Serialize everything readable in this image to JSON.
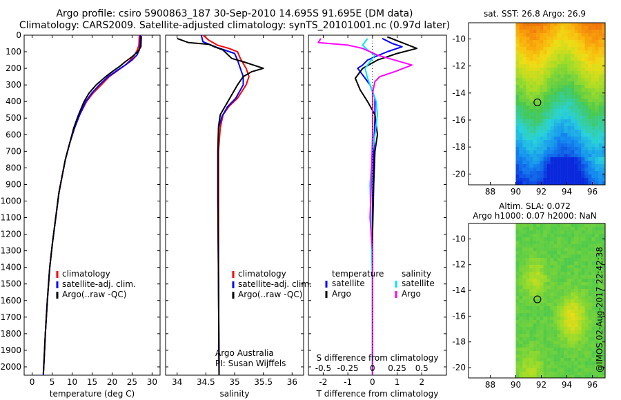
{
  "header": {
    "title_line1": "Argo profile: csiro 5900863_187 30-Sep-2010 14.695S 91.695E (DM data)",
    "title_line2": "Climatology: CARS2009. Satellite-adjusted climatology: synTS_20101001.nc (0.97d later)"
  },
  "colors": {
    "climatology": "#ff0000",
    "satellite": "#0000ff",
    "argo": "#000000",
    "sal_satellite": "#00e5ff",
    "sal_argo": "#ff00ff"
  },
  "depth_axis": {
    "range": [
      0,
      2050
    ],
    "ticks": [
      0,
      100,
      200,
      300,
      400,
      500,
      600,
      700,
      800,
      900,
      1000,
      1100,
      1200,
      1300,
      1400,
      1500,
      1600,
      1700,
      1800,
      1900,
      2000
    ]
  },
  "chart_data": [
    {
      "type": "line",
      "id": "temperature",
      "xlabel": "temperature (deg C)",
      "xlim": [
        -2,
        32
      ],
      "xticks": [
        0,
        5,
        10,
        15,
        20,
        25,
        30
      ],
      "legend": [
        "climatology",
        "satellite-adj. clim.",
        "Argo(..raw -QC)"
      ],
      "series": [
        {
          "name": "climatology",
          "color": "#ff0000",
          "points": [
            [
              26.8,
              0
            ],
            [
              26.7,
              60
            ],
            [
              26.3,
              90
            ],
            [
              25.6,
              120
            ],
            [
              24.6,
              150
            ],
            [
              23.3,
              180
            ],
            [
              21.6,
              210
            ],
            [
              19.3,
              250
            ],
            [
              17.3,
              300
            ],
            [
              15.2,
              350
            ],
            [
              13.6,
              400
            ],
            [
              11.9,
              480
            ],
            [
              10.6,
              560
            ],
            [
              9.4,
              650
            ],
            [
              8.3,
              750
            ],
            [
              7.5,
              850
            ],
            [
              6.7,
              950
            ],
            [
              5.9,
              1100
            ],
            [
              5.1,
              1250
            ],
            [
              4.4,
              1400
            ],
            [
              3.8,
              1600
            ],
            [
              3.3,
              1800
            ],
            [
              3.0,
              1950
            ],
            [
              2.8,
              2050
            ]
          ]
        },
        {
          "name": "satellite-adj. clim.",
          "color": "#0000ff",
          "points": [
            [
              27.1,
              0
            ],
            [
              27.0,
              60
            ],
            [
              26.8,
              90
            ],
            [
              26.2,
              120
            ],
            [
              25.0,
              150
            ],
            [
              23.3,
              180
            ],
            [
              21.4,
              210
            ],
            [
              19.0,
              250
            ],
            [
              16.8,
              300
            ],
            [
              14.9,
              350
            ],
            [
              13.4,
              400
            ],
            [
              11.9,
              480
            ],
            [
              10.6,
              560
            ],
            [
              9.4,
              650
            ],
            [
              8.3,
              750
            ],
            [
              7.5,
              850
            ],
            [
              6.7,
              950
            ],
            [
              5.9,
              1100
            ],
            [
              5.1,
              1250
            ],
            [
              4.4,
              1400
            ],
            [
              3.8,
              1600
            ],
            [
              3.3,
              1800
            ],
            [
              3.0,
              1950
            ],
            [
              2.8,
              2050
            ]
          ]
        },
        {
          "name": "Argo(..raw -QC)",
          "color": "#000000",
          "points": [
            [
              27.3,
              5
            ],
            [
              27.2,
              70
            ],
            [
              26.4,
              100
            ],
            [
              25.0,
              130
            ],
            [
              23.3,
              160
            ],
            [
              21.8,
              190
            ],
            [
              20.3,
              215
            ],
            [
              18.4,
              250
            ],
            [
              16.0,
              300
            ],
            [
              14.2,
              350
            ],
            [
              13.0,
              400
            ],
            [
              11.6,
              480
            ],
            [
              10.4,
              560
            ],
            [
              9.4,
              650
            ],
            [
              8.3,
              750
            ],
            [
              7.5,
              850
            ],
            [
              6.7,
              950
            ],
            [
              5.9,
              1100
            ],
            [
              5.1,
              1250
            ],
            [
              4.4,
              1400
            ],
            [
              3.8,
              1600
            ],
            [
              3.3,
              1800
            ],
            [
              3.0,
              1950
            ],
            [
              2.8,
              2040
            ]
          ]
        }
      ]
    },
    {
      "type": "line",
      "id": "salinity",
      "xlabel": "salinity",
      "xlim": [
        33.8,
        36.2
      ],
      "xticks": [
        34,
        34.5,
        35,
        35.5,
        36
      ],
      "legend": [
        "climatology",
        "satellite-adj. clim.",
        "Argo(..raw -QC)"
      ],
      "annotation": [
        "Argo Australia",
        "PI: Susan Wijffels"
      ],
      "series": [
        {
          "name": "climatology",
          "color": "#ff0000",
          "points": [
            [
              34.45,
              0
            ],
            [
              34.55,
              30
            ],
            [
              34.7,
              60
            ],
            [
              34.9,
              80
            ],
            [
              35.05,
              100
            ],
            [
              35.1,
              140
            ],
            [
              35.2,
              200
            ],
            [
              35.25,
              250
            ],
            [
              35.2,
              300
            ],
            [
              35.05,
              380
            ],
            [
              34.9,
              430
            ],
            [
              34.8,
              480
            ],
            [
              34.75,
              560
            ],
            [
              34.72,
              700
            ],
            [
              34.72,
              1000
            ],
            [
              34.72,
              1500
            ],
            [
              34.73,
              2050
            ]
          ]
        },
        {
          "name": "satellite-adj. clim.",
          "color": "#0000ff",
          "points": [
            [
              34.42,
              0
            ],
            [
              34.45,
              40
            ],
            [
              34.7,
              75
            ],
            [
              35.0,
              110
            ],
            [
              35.05,
              150
            ],
            [
              35.1,
              200
            ],
            [
              35.15,
              250
            ],
            [
              35.15,
              300
            ],
            [
              35.02,
              380
            ],
            [
              34.88,
              430
            ],
            [
              34.78,
              490
            ],
            [
              34.72,
              560
            ],
            [
              34.71,
              700
            ],
            [
              34.71,
              1000
            ],
            [
              34.72,
              1500
            ],
            [
              34.73,
              2050
            ]
          ]
        },
        {
          "name": "Argo(..raw -QC)",
          "color": "#000000",
          "points": [
            [
              34.0,
              20
            ],
            [
              34.2,
              45
            ],
            [
              34.55,
              55
            ],
            [
              34.65,
              70
            ],
            [
              34.8,
              90
            ],
            [
              34.95,
              140
            ],
            [
              35.15,
              160
            ],
            [
              35.5,
              200
            ],
            [
              35.3,
              220
            ],
            [
              35.15,
              250
            ],
            [
              35.05,
              300
            ],
            [
              34.95,
              360
            ],
            [
              34.85,
              420
            ],
            [
              34.75,
              480
            ],
            [
              34.72,
              550
            ],
            [
              34.71,
              700
            ],
            [
              34.71,
              1000
            ],
            [
              34.72,
              1500
            ],
            [
              34.73,
              2050
            ]
          ]
        }
      ]
    },
    {
      "type": "line",
      "id": "differences",
      "xlabel": "T difference from climatology",
      "xlabel_top": "S difference from climatology",
      "xlim": [
        -2.6,
        3.0
      ],
      "xticks": [
        -2,
        -1,
        0,
        1,
        2
      ],
      "top_ticks": [
        {
          "label": "-0.5",
          "t": -2
        },
        {
          "label": "-0.25",
          "t": -1
        },
        {
          "label": "0",
          "t": 0
        },
        {
          "label": "0.25",
          "t": 1
        },
        {
          "label": "0.5",
          "t": 2
        }
      ],
      "legend_left_title": "temperature",
      "legend_right_title": "salinity",
      "legend_left": [
        "satellite",
        "Argo"
      ],
      "legend_right": [
        "satellite",
        "Argo"
      ],
      "series": [
        {
          "name": "T satellite",
          "color": "#0000ff",
          "points": [
            [
              0.4,
              20
            ],
            [
              0.8,
              50
            ],
            [
              1.2,
              70
            ],
            [
              0.6,
              100
            ],
            [
              0.1,
              130
            ],
            [
              -0.2,
              150
            ],
            [
              -0.4,
              180
            ],
            [
              -0.6,
              200
            ],
            [
              -0.4,
              240
            ],
            [
              -0.1,
              300
            ],
            [
              0.1,
              380
            ],
            [
              0.1,
              500
            ],
            [
              0.05,
              700
            ],
            [
              0,
              1000
            ],
            [
              0,
              1500
            ],
            [
              0,
              2050
            ]
          ]
        },
        {
          "name": "T Argo",
          "color": "#000000",
          "points": [
            [
              0.6,
              10
            ],
            [
              1.8,
              80
            ],
            [
              1.0,
              110
            ],
            [
              0.2,
              150
            ],
            [
              -0.4,
              200
            ],
            [
              -0.7,
              260
            ],
            [
              -0.5,
              330
            ],
            [
              -0.2,
              400
            ],
            [
              0.1,
              480
            ],
            [
              0.2,
              600
            ],
            [
              0.1,
              700
            ],
            [
              0.05,
              900
            ],
            [
              0,
              1200
            ],
            [
              0,
              1600
            ],
            [
              0,
              2050
            ]
          ]
        },
        {
          "name": "S satellite",
          "color": "#00e5ff",
          "points": [
            [
              -0.2,
              20
            ],
            [
              -0.4,
              60
            ],
            [
              -0.2,
              90
            ],
            [
              0.1,
              120
            ],
            [
              -0.1,
              160
            ],
            [
              -0.3,
              200
            ],
            [
              -0.2,
              260
            ],
            [
              0,
              340
            ],
            [
              0.15,
              400
            ],
            [
              0.2,
              480
            ],
            [
              0.1,
              600
            ],
            [
              0,
              700
            ],
            [
              -0.1,
              900
            ],
            [
              -0.05,
              1200
            ],
            [
              0,
              1500
            ],
            [
              0,
              2050
            ]
          ]
        },
        {
          "name": "S Argo",
          "color": "#ff00ff",
          "points": [
            [
              -2.1,
              20
            ],
            [
              -2.2,
              45
            ],
            [
              -1.0,
              60
            ],
            [
              -0.4,
              80
            ],
            [
              0.2,
              120
            ],
            [
              1.6,
              180
            ],
            [
              0.9,
              220
            ],
            [
              0.3,
              250
            ],
            [
              0.1,
              280
            ],
            [
              0,
              350
            ],
            [
              0,
              600
            ],
            [
              -0.05,
              900
            ],
            [
              -0.1,
              1100
            ],
            [
              0,
              1300
            ],
            [
              0,
              2050
            ]
          ]
        }
      ]
    }
  ],
  "maps": {
    "sst": {
      "title": "sat. SST: 26.8 Argo: 26.9",
      "xticks": [
        88,
        90,
        92,
        94,
        96
      ],
      "yticks": [
        -10,
        -12,
        -14,
        -16,
        -18,
        -20
      ]
    },
    "sla": {
      "title_line1": "Altim. SLA: 0.072",
      "title_line2": "Argo h1000: 0.07 h2000: NaN",
      "xticks": [
        88,
        90,
        92,
        94,
        96
      ],
      "yticks": [
        -10,
        -12,
        -14,
        -16,
        -18,
        -20
      ]
    },
    "marker": {
      "lon": 91.695,
      "lat": -14.695
    }
  },
  "footer": {
    "stamp": "@IMOS 02-Aug-2017 22:42:38"
  }
}
